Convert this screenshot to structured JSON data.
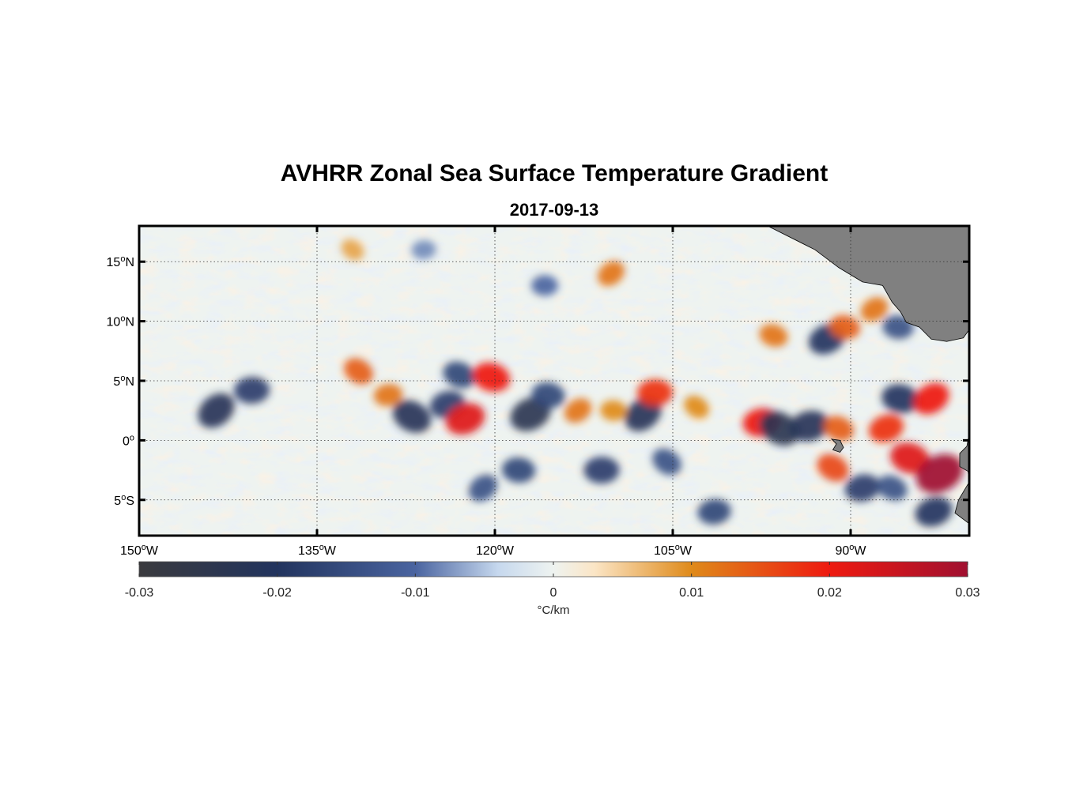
{
  "title": "AVHRR Zonal Sea Surface Temperature Gradient",
  "subtitle": "2017-09-13",
  "colors": {
    "land": "#808080",
    "frame": "#000000",
    "grid": "#333333"
  },
  "chart_data": {
    "type": "heatmap",
    "projection": "equirectangular",
    "lon_range": [
      -150,
      -80
    ],
    "lat_range": [
      -8,
      18
    ],
    "lon_ticks": [
      {
        "value": -150,
        "label_num": "150",
        "label_dir": "W"
      },
      {
        "value": -135,
        "label_num": "135",
        "label_dir": "W"
      },
      {
        "value": -120,
        "label_num": "120",
        "label_dir": "W"
      },
      {
        "value": -105,
        "label_num": "105",
        "label_dir": "W"
      },
      {
        "value": -90,
        "label_num": "90",
        "label_dir": "W"
      }
    ],
    "lat_ticks": [
      {
        "value": 15,
        "label_num": "15",
        "label_dir": "N"
      },
      {
        "value": 10,
        "label_num": "10",
        "label_dir": "N"
      },
      {
        "value": 5,
        "label_num": "5",
        "label_dir": "N"
      },
      {
        "value": 0,
        "label_num": "0",
        "label_dir": ""
      },
      {
        "value": -5,
        "label_num": "5",
        "label_dir": "S"
      }
    ],
    "grid": true,
    "colorbar": {
      "range": [
        -0.03,
        0.03
      ],
      "ticks": [
        "-0.03",
        "-0.02",
        "-0.01",
        "0",
        "0.01",
        "0.02",
        "0.03"
      ],
      "unit": "°C/km",
      "stops": [
        {
          "value": -0.03,
          "color": "#3a3a3e"
        },
        {
          "value": -0.02,
          "color": "#22345e"
        },
        {
          "value": -0.01,
          "color": "#4a64a0"
        },
        {
          "value": -0.004,
          "color": "#c6d8ee"
        },
        {
          "value": 0.0,
          "color": "#eef3f0"
        },
        {
          "value": 0.003,
          "color": "#fbe5c5"
        },
        {
          "value": 0.01,
          "color": "#df8a1a"
        },
        {
          "value": 0.02,
          "color": "#ee1a10"
        },
        {
          "value": 0.03,
          "color": "#a01030"
        }
      ]
    },
    "features": [
      {
        "lon": -143.5,
        "lat": 2.5,
        "value": -0.022
      },
      {
        "lon": -140.5,
        "lat": 4.2,
        "value": -0.018
      },
      {
        "lon": -131.5,
        "lat": 5.8,
        "value": 0.014
      },
      {
        "lon": -129.0,
        "lat": 3.8,
        "value": 0.012
      },
      {
        "lon": -127.0,
        "lat": 2.0,
        "value": -0.022
      },
      {
        "lon": -124.0,
        "lat": 3.0,
        "value": -0.018
      },
      {
        "lon": -123.0,
        "lat": 5.5,
        "value": -0.016
      },
      {
        "lon": -122.5,
        "lat": 1.8,
        "value": 0.022
      },
      {
        "lon": -120.3,
        "lat": 5.3,
        "value": 0.02
      },
      {
        "lon": -117.0,
        "lat": 2.2,
        "value": -0.024
      },
      {
        "lon": -115.5,
        "lat": 3.8,
        "value": -0.016
      },
      {
        "lon": -113.0,
        "lat": 2.5,
        "value": 0.012
      },
      {
        "lon": -110.0,
        "lat": 2.5,
        "value": 0.01
      },
      {
        "lon": -107.5,
        "lat": 2.2,
        "value": -0.022
      },
      {
        "lon": -106.5,
        "lat": 4.0,
        "value": 0.018
      },
      {
        "lon": -103.0,
        "lat": 2.8,
        "value": 0.01
      },
      {
        "lon": -97.5,
        "lat": 1.5,
        "value": 0.02
      },
      {
        "lon": -96.0,
        "lat": 1.0,
        "value": -0.024
      },
      {
        "lon": -93.5,
        "lat": 1.2,
        "value": -0.022
      },
      {
        "lon": -91.0,
        "lat": 1.0,
        "value": 0.014
      },
      {
        "lon": -87.0,
        "lat": 1.0,
        "value": 0.018
      },
      {
        "lon": -85.0,
        "lat": -1.5,
        "value": 0.022
      },
      {
        "lon": -82.5,
        "lat": -2.8,
        "value": 0.03
      },
      {
        "lon": -85.8,
        "lat": 3.5,
        "value": -0.02
      },
      {
        "lon": -83.2,
        "lat": 3.5,
        "value": 0.02
      },
      {
        "lon": -118.0,
        "lat": -2.5,
        "value": -0.016
      },
      {
        "lon": -121.0,
        "lat": -4.0,
        "value": -0.014
      },
      {
        "lon": -111.0,
        "lat": -2.5,
        "value": -0.018
      },
      {
        "lon": -105.5,
        "lat": -1.8,
        "value": -0.014
      },
      {
        "lon": -101.5,
        "lat": -6.0,
        "value": -0.016
      },
      {
        "lon": -91.5,
        "lat": -2.3,
        "value": 0.016
      },
      {
        "lon": -89.0,
        "lat": -4.0,
        "value": -0.018
      },
      {
        "lon": -86.5,
        "lat": -4.0,
        "value": -0.014
      },
      {
        "lon": -83.0,
        "lat": -6.0,
        "value": -0.02
      },
      {
        "lon": -96.5,
        "lat": 8.8,
        "value": 0.012
      },
      {
        "lon": -92.0,
        "lat": 8.5,
        "value": -0.02
      },
      {
        "lon": -90.5,
        "lat": 9.5,
        "value": 0.014
      },
      {
        "lon": -88.0,
        "lat": 11.0,
        "value": 0.012
      },
      {
        "lon": -86.0,
        "lat": 9.5,
        "value": -0.014
      },
      {
        "lon": -110.2,
        "lat": 14.0,
        "value": 0.012
      },
      {
        "lon": -115.8,
        "lat": 13.0,
        "value": -0.01
      },
      {
        "lon": -132.0,
        "lat": 16.0,
        "value": 0.008
      },
      {
        "lon": -126.0,
        "lat": 16.0,
        "value": -0.008
      }
    ],
    "land": [
      {
        "name": "central-america",
        "outline": [
          [
            -102,
            18
          ],
          [
            -97,
            18
          ],
          [
            -93,
            16
          ],
          [
            -91,
            14.5
          ],
          [
            -89,
            13.3
          ],
          [
            -87.3,
            13
          ],
          [
            -86.5,
            11.6
          ],
          [
            -85.8,
            10.8
          ],
          [
            -85.3,
            9.9
          ],
          [
            -84.2,
            9.5
          ],
          [
            -83.2,
            8.5
          ],
          [
            -81.9,
            8.3
          ],
          [
            -80.5,
            8.6
          ],
          [
            -80,
            9.3
          ],
          [
            -80,
            18
          ]
        ]
      },
      {
        "name": "south-america",
        "outline": [
          [
            -80,
            0.6
          ],
          [
            -80.2,
            -0.5
          ],
          [
            -80.8,
            -1.1
          ],
          [
            -80.8,
            -2.2
          ],
          [
            -80.1,
            -2.6
          ],
          [
            -80,
            -3.5
          ],
          [
            -80.9,
            -5
          ],
          [
            -81.2,
            -6.1
          ],
          [
            -80,
            -7
          ]
        ]
      },
      {
        "name": "galapagos",
        "outline": [
          [
            -91.6,
            0.1
          ],
          [
            -90.9,
            0.0
          ],
          [
            -90.6,
            -0.6
          ],
          [
            -90.9,
            -1.0
          ],
          [
            -91.5,
            -0.8
          ],
          [
            -91.2,
            -0.3
          ]
        ]
      }
    ]
  }
}
